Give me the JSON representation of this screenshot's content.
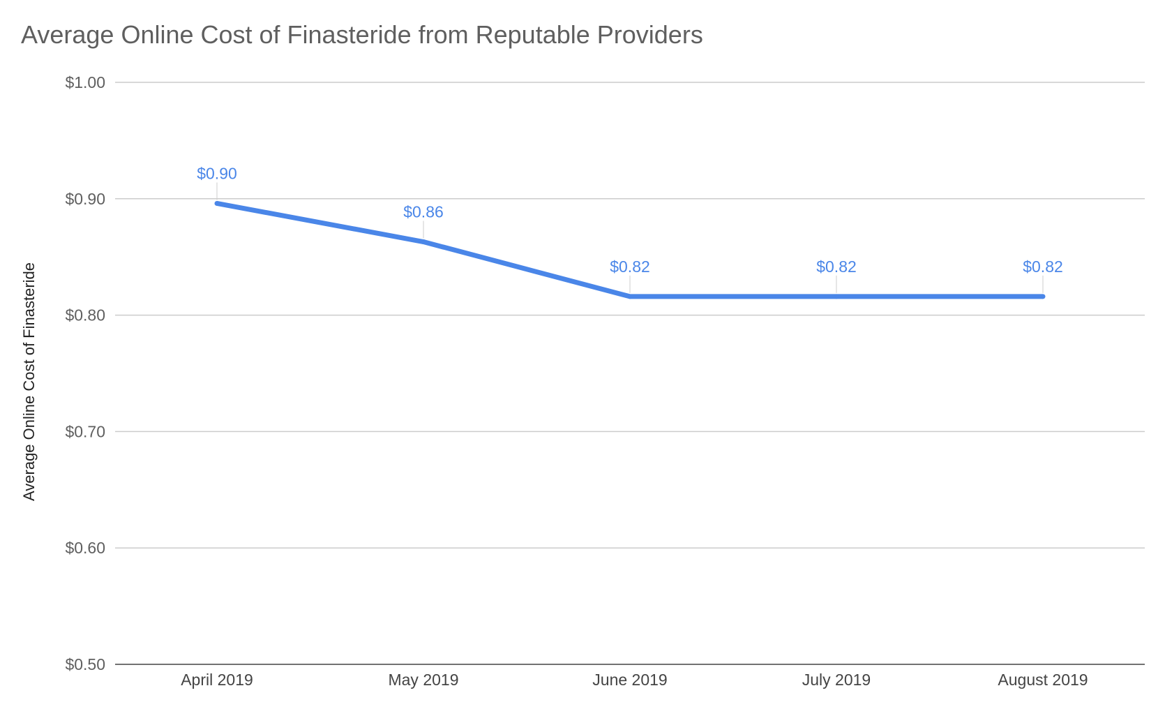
{
  "chart_data": {
    "type": "line",
    "title": "Average Online Cost of Finasteride from Reputable Providers",
    "xlabel": "",
    "ylabel": "Average Online Cost of Finasteride",
    "categories": [
      "April 2019",
      "May 2019",
      "June 2019",
      "July 2019",
      "August 2019"
    ],
    "series": [
      {
        "name": "Average Online Cost of Finasteride",
        "values": [
          0.896,
          0.863,
          0.816,
          0.816,
          0.816
        ],
        "data_labels": [
          "$0.90",
          "$0.86",
          "$0.82",
          "$0.82",
          "$0.82"
        ],
        "color": "#4a86e8"
      }
    ],
    "ylim": [
      0.5,
      1.0
    ],
    "yticks": [
      0.5,
      0.6,
      0.7,
      0.8,
      0.9,
      1.0
    ],
    "ytick_labels": [
      "$0.50",
      "$0.60",
      "$0.70",
      "$0.80",
      "$0.90",
      "$1.00"
    ],
    "grid": true,
    "legend": "none"
  }
}
